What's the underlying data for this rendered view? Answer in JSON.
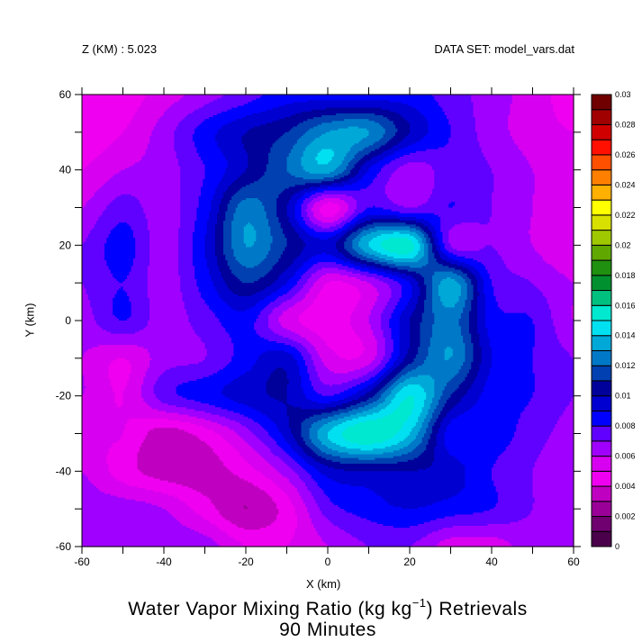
{
  "header": {
    "z_label": "Z (KM) : 5.023",
    "dataset_label": "DATA SET: model_vars.dat"
  },
  "chart_data": {
    "type": "heatmap",
    "subtype": "filled-contour",
    "title_main": "Water Vapor Mixing Ratio (kg kg",
    "title_sup": "−1",
    "title_end": ") Retrievals",
    "subtitle": "90 Minutes",
    "xlabel": "X (km)",
    "ylabel": "Y (km)",
    "xlim": [
      -60,
      60
    ],
    "ylim": [
      -60,
      60
    ],
    "xticks": [
      "-60",
      "-40",
      "-20",
      "0",
      "20",
      "40",
      "60"
    ],
    "yticks": [
      "-60",
      "-40",
      "-20",
      "0",
      "20",
      "40",
      "60"
    ],
    "grid_x": [
      -60,
      -50,
      -40,
      -30,
      -20,
      -10,
      0,
      10,
      20,
      30,
      40,
      50,
      60
    ],
    "grid_y": [
      60,
      50,
      40,
      30,
      20,
      10,
      0,
      -10,
      -20,
      -30,
      -40,
      -50,
      -60
    ],
    "values": [
      [
        0.0045,
        0.0045,
        0.0055,
        0.0065,
        0.0075,
        0.0085,
        0.0085,
        0.0085,
        0.0085,
        0.0075,
        0.0065,
        0.0055,
        0.0045
      ],
      [
        0.0045,
        0.005,
        0.0065,
        0.0085,
        0.01,
        0.011,
        0.013,
        0.013,
        0.01,
        0.008,
        0.0065,
        0.0055,
        0.005
      ],
      [
        0.005,
        0.006,
        0.0065,
        0.008,
        0.01,
        0.012,
        0.0135,
        0.009,
        0.0065,
        0.0075,
        0.007,
        0.006,
        0.0055
      ],
      [
        0.006,
        0.0075,
        0.0065,
        0.0085,
        0.0125,
        0.01,
        0.0045,
        0.008,
        0.007,
        0.008,
        0.007,
        0.006,
        0.0055
      ],
      [
        0.007,
        0.0085,
        0.0065,
        0.009,
        0.013,
        0.011,
        0.0095,
        0.014,
        0.0155,
        0.007,
        0.007,
        0.006,
        0.005
      ],
      [
        0.007,
        0.008,
        0.0065,
        0.0085,
        0.011,
        0.009,
        0.005,
        0.006,
        0.009,
        0.0135,
        0.008,
        0.007,
        0.006
      ],
      [
        0.0065,
        0.008,
        0.0065,
        0.0075,
        0.0085,
        0.0055,
        0.0045,
        0.006,
        0.01,
        0.0125,
        0.0085,
        0.008,
        0.006
      ],
      [
        0.006,
        0.005,
        0.0065,
        0.007,
        0.0085,
        0.0095,
        0.0055,
        0.0055,
        0.0105,
        0.013,
        0.009,
        0.008,
        0.007
      ],
      [
        0.006,
        0.005,
        0.0075,
        0.0085,
        0.0095,
        0.01,
        0.008,
        0.0105,
        0.015,
        0.011,
        0.0085,
        0.008,
        0.007
      ],
      [
        0.005,
        0.005,
        0.0035,
        0.0045,
        0.0065,
        0.0095,
        0.014,
        0.016,
        0.014,
        0.0085,
        0.0085,
        0.0075,
        0.0065
      ],
      [
        0.006,
        0.0045,
        0.0035,
        0.0035,
        0.0045,
        0.0065,
        0.0095,
        0.01,
        0.01,
        0.0095,
        0.008,
        0.007,
        0.006
      ],
      [
        0.0065,
        0.0065,
        0.006,
        0.0045,
        0.003,
        0.0045,
        0.0075,
        0.0085,
        0.009,
        0.0085,
        0.008,
        0.007,
        0.0065
      ],
      [
        0.0065,
        0.0065,
        0.0065,
        0.0065,
        0.005,
        0.005,
        0.006,
        0.007,
        0.007,
        0.0055,
        0.0055,
        0.0065,
        0.0065
      ]
    ],
    "colorbar": {
      "range": [
        0,
        0.03
      ],
      "step": 0.001,
      "tick_labels": [
        "0",
        "0.002",
        "0.004",
        "0.006",
        "0.008",
        "0.01",
        "0.012",
        "0.014",
        "0.016",
        "0.018",
        "0.02",
        "0.022",
        "0.024",
        "0.026",
        "0.028",
        "0.03"
      ],
      "colors": [
        "#4a004a",
        "#700070",
        "#9a0098",
        "#c000c0",
        "#f000f0",
        "#d800f0",
        "#a000ff",
        "#6000ff",
        "#0000ff",
        "#0000d0",
        "#00009a",
        "#0040b0",
        "#0078c8",
        "#00a8d8",
        "#00e0f0",
        "#00e8d0",
        "#00c080",
        "#009030",
        "#209010",
        "#60a800",
        "#a0c800",
        "#d8e000",
        "#ffff00",
        "#ffb000",
        "#ff8000",
        "#ff5000",
        "#ff1000",
        "#d00000",
        "#a00000",
        "#700000"
      ]
    },
    "legend_placement": "right"
  }
}
